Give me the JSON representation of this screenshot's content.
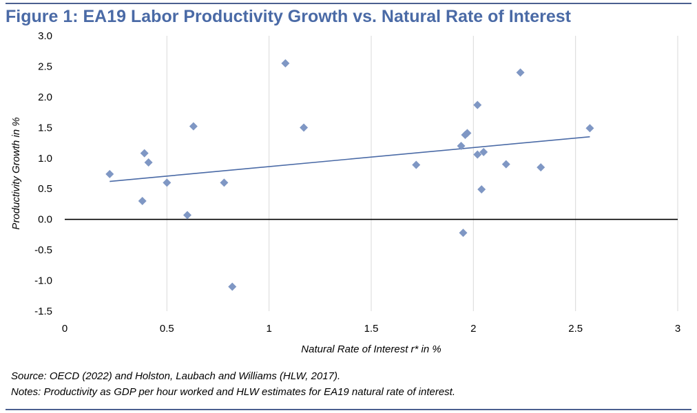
{
  "title": "Figure 1: EA19 Labor Productivity Growth vs. Natural Rate of Interest",
  "source": "Source: OECD (2022) and Holston, Laubach and Williams (HLW, 2017).",
  "notes": "Notes: Productivity as GDP per hour worked and HLW estimates for EA19 natural rate of interest.",
  "colors": {
    "title": "#4a6aa6",
    "marker": "#7f97c4",
    "trendline": "#4a6aa6",
    "zero_line": "#000000",
    "grid": "#d9d9d9",
    "rule": "#4a5f8f"
  },
  "chart_data": {
    "type": "scatter",
    "xlabel": "Natural Rate of Interest r* in %",
    "ylabel": "Productivity Growth in %",
    "xlim": [
      0,
      3
    ],
    "ylim": [
      -1.5,
      3.0
    ],
    "x_ticks": [
      "0",
      "0.5",
      "1",
      "1.5",
      "2",
      "2.5",
      "3"
    ],
    "y_ticks": [
      "3.0",
      "2.5",
      "2.0",
      "1.5",
      "1.0",
      "0.5",
      "0.0",
      "-0.5",
      "-1.0",
      "-1.5"
    ],
    "grid": "vertical",
    "marker": "diamond",
    "points": [
      {
        "x": 0.22,
        "y": 0.74
      },
      {
        "x": 0.38,
        "y": 0.3
      },
      {
        "x": 0.39,
        "y": 1.08
      },
      {
        "x": 0.41,
        "y": 0.93
      },
      {
        "x": 0.5,
        "y": 0.6
      },
      {
        "x": 0.6,
        "y": 0.07
      },
      {
        "x": 0.63,
        "y": 1.52
      },
      {
        "x": 0.78,
        "y": 0.6
      },
      {
        "x": 0.82,
        "y": -1.1
      },
      {
        "x": 1.08,
        "y": 2.55
      },
      {
        "x": 1.17,
        "y": 1.5
      },
      {
        "x": 1.72,
        "y": 0.89
      },
      {
        "x": 1.94,
        "y": 1.2
      },
      {
        "x": 1.95,
        "y": -0.22
      },
      {
        "x": 1.96,
        "y": 1.38
      },
      {
        "x": 1.97,
        "y": 1.41
      },
      {
        "x": 2.02,
        "y": 1.06
      },
      {
        "x": 2.02,
        "y": 1.87
      },
      {
        "x": 2.04,
        "y": 0.49
      },
      {
        "x": 2.05,
        "y": 1.1
      },
      {
        "x": 2.16,
        "y": 0.9
      },
      {
        "x": 2.23,
        "y": 2.4
      },
      {
        "x": 2.33,
        "y": 0.85
      },
      {
        "x": 2.57,
        "y": 1.49
      }
    ],
    "trendline": {
      "x1": 0.22,
      "y1": 0.62,
      "x2": 2.57,
      "y2": 1.35
    }
  }
}
